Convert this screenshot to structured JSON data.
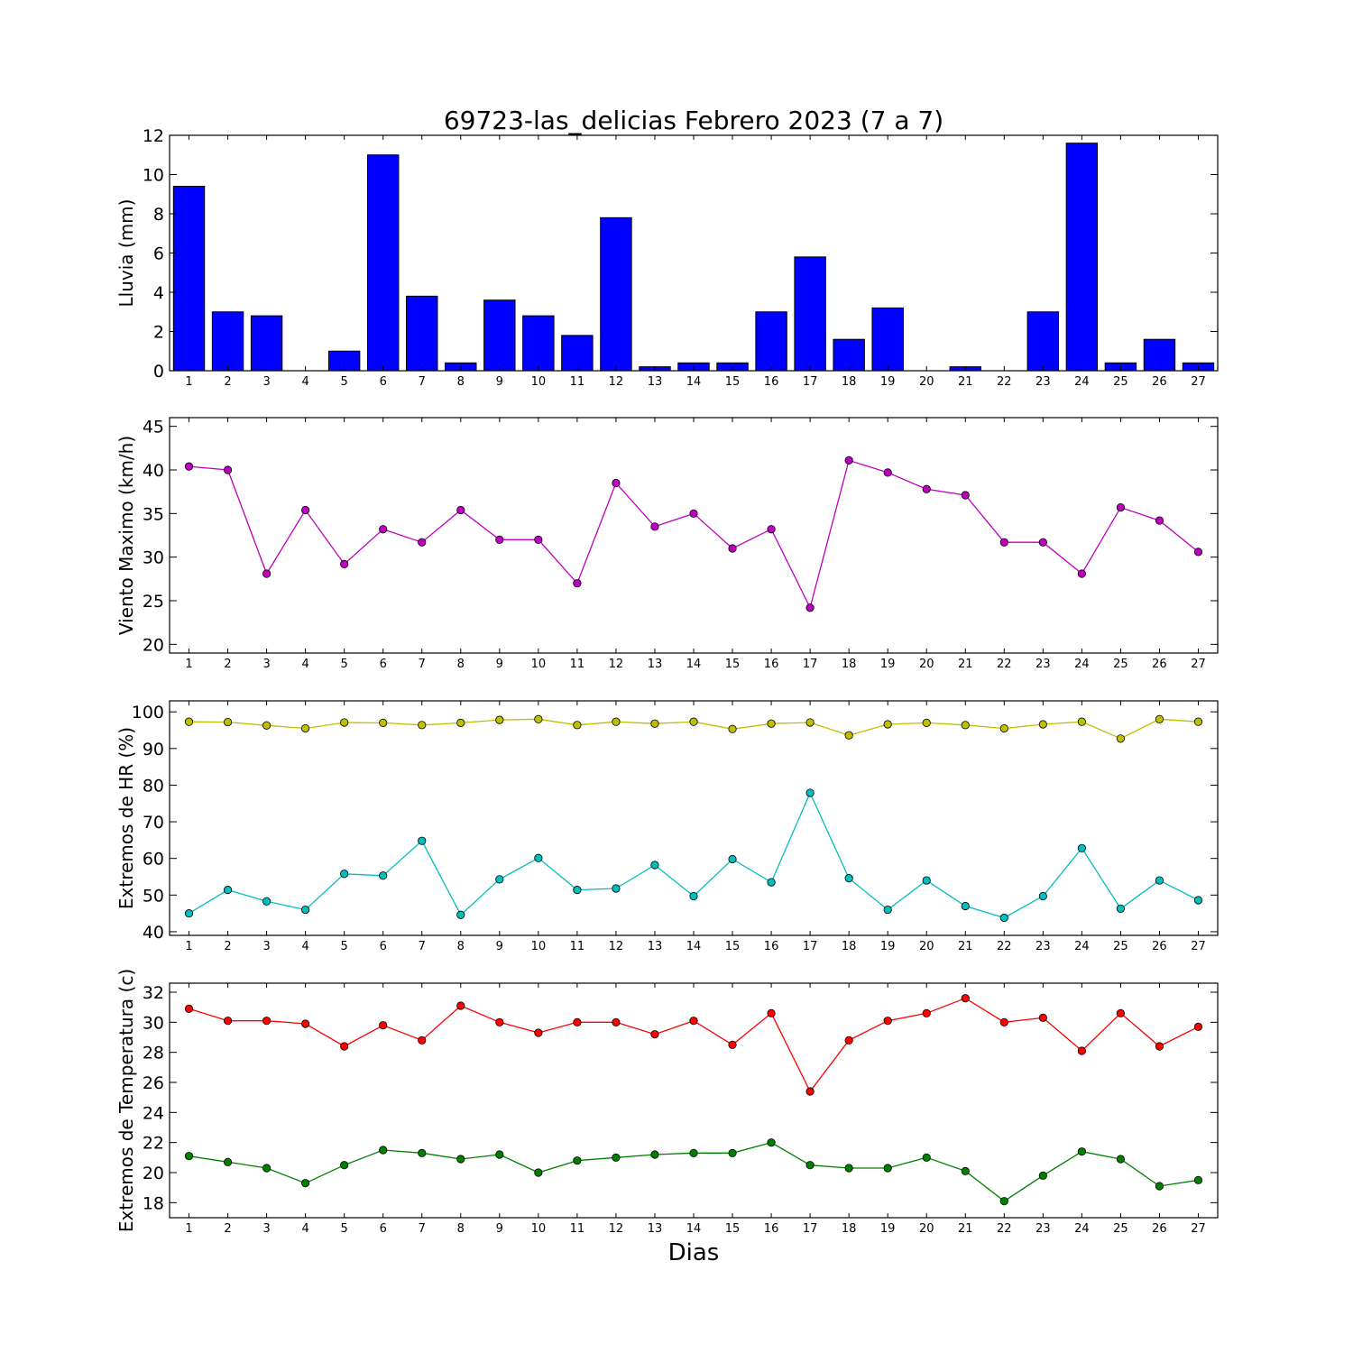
{
  "title": "69723-las_delicias Febrero 2023  (7 a 7)",
  "xlabel": "Dias",
  "chart_data": [
    {
      "type": "bar",
      "ylabel": "Lluvia (mm)",
      "ylim": [
        0,
        12
      ],
      "yticks": [
        0,
        2,
        4,
        6,
        8,
        10,
        12
      ],
      "x": [
        1,
        2,
        3,
        4,
        5,
        6,
        7,
        8,
        9,
        10,
        11,
        12,
        13,
        14,
        15,
        16,
        17,
        18,
        19,
        20,
        21,
        22,
        23,
        24,
        25,
        26,
        27
      ],
      "xlim": [
        0.5,
        27.5
      ],
      "series": [
        {
          "color": "#0000ff",
          "values": [
            9.4,
            3.0,
            2.8,
            0.0,
            1.0,
            11.0,
            3.8,
            0.4,
            3.6,
            2.8,
            1.8,
            7.8,
            0.2,
            0.4,
            0.4,
            3.0,
            5.8,
            1.6,
            3.2,
            0.0,
            0.2,
            0.0,
            3.0,
            11.6,
            0.4,
            1.6,
            0.4
          ]
        }
      ]
    },
    {
      "type": "line",
      "ylabel": "Viento Maximo (km/h)",
      "ylim": [
        19,
        46
      ],
      "yticks": [
        20,
        25,
        30,
        35,
        40,
        45
      ],
      "x": [
        1,
        2,
        3,
        4,
        5,
        6,
        7,
        8,
        9,
        10,
        11,
        12,
        13,
        14,
        15,
        16,
        17,
        18,
        19,
        20,
        21,
        22,
        23,
        24,
        25,
        26,
        27
      ],
      "xlim": [
        0.5,
        27.5
      ],
      "series": [
        {
          "color": "#bf00bf",
          "values": [
            40.4,
            40.0,
            28.1,
            35.4,
            29.2,
            33.2,
            31.7,
            35.4,
            32.0,
            32.0,
            27.0,
            38.5,
            33.5,
            35.0,
            31.0,
            33.2,
            24.2,
            41.1,
            39.7,
            37.8,
            37.1,
            31.7,
            31.7,
            28.1,
            35.7,
            34.2,
            30.6
          ]
        }
      ]
    },
    {
      "type": "line",
      "ylabel": "Extremos de HR (%)",
      "ylim": [
        39,
        103
      ],
      "yticks": [
        40,
        50,
        60,
        70,
        80,
        90,
        100
      ],
      "x": [
        1,
        2,
        3,
        4,
        5,
        6,
        7,
        8,
        9,
        10,
        11,
        12,
        13,
        14,
        15,
        16,
        17,
        18,
        19,
        20,
        21,
        22,
        23,
        24,
        25,
        26,
        27
      ],
      "xlim": [
        0.5,
        27.5
      ],
      "series": [
        {
          "color": "#bfbf00",
          "values": [
            97.3,
            97.2,
            96.3,
            95.5,
            97.1,
            97.0,
            96.4,
            97.0,
            97.8,
            98.0,
            96.4,
            97.3,
            96.8,
            97.3,
            95.3,
            96.8,
            97.1,
            93.6,
            96.6,
            97.0,
            96.4,
            95.5,
            96.6,
            97.3,
            92.7,
            98.0,
            97.3
          ]
        },
        {
          "color": "#00bfbf",
          "values": [
            45.0,
            51.4,
            48.3,
            46.0,
            55.8,
            55.3,
            64.8,
            44.6,
            54.3,
            60.1,
            51.4,
            51.8,
            58.2,
            49.7,
            59.8,
            53.5,
            77.9,
            54.6,
            46.0,
            54.0,
            47.0,
            43.8,
            49.7,
            62.8,
            46.3,
            54.0,
            48.6
          ]
        }
      ]
    },
    {
      "type": "line",
      "ylabel": "Extremos de Temperatura (c)",
      "ylim": [
        17,
        32.6
      ],
      "yticks": [
        18,
        20,
        22,
        24,
        26,
        28,
        30,
        32
      ],
      "x": [
        1,
        2,
        3,
        4,
        5,
        6,
        7,
        8,
        9,
        10,
        11,
        12,
        13,
        14,
        15,
        16,
        17,
        18,
        19,
        20,
        21,
        22,
        23,
        24,
        25,
        26,
        27
      ],
      "xlim": [
        0.5,
        27.5
      ],
      "series": [
        {
          "color": "#ff0000",
          "values": [
            30.9,
            30.1,
            30.1,
            29.9,
            28.4,
            29.8,
            28.8,
            31.1,
            30.0,
            29.3,
            30.0,
            30.0,
            29.2,
            30.1,
            28.5,
            30.6,
            25.4,
            28.8,
            30.1,
            30.6,
            31.6,
            30.0,
            30.3,
            28.1,
            30.6,
            28.4,
            29.7
          ]
        },
        {
          "color": "#008000",
          "values": [
            21.1,
            20.7,
            20.3,
            19.3,
            20.5,
            21.5,
            21.3,
            20.9,
            21.2,
            20.0,
            20.8,
            21.0,
            21.2,
            21.3,
            21.3,
            22.0,
            20.5,
            20.3,
            20.3,
            21.0,
            20.1,
            18.1,
            19.8,
            21.4,
            20.9,
            19.1,
            19.5
          ]
        }
      ]
    }
  ]
}
